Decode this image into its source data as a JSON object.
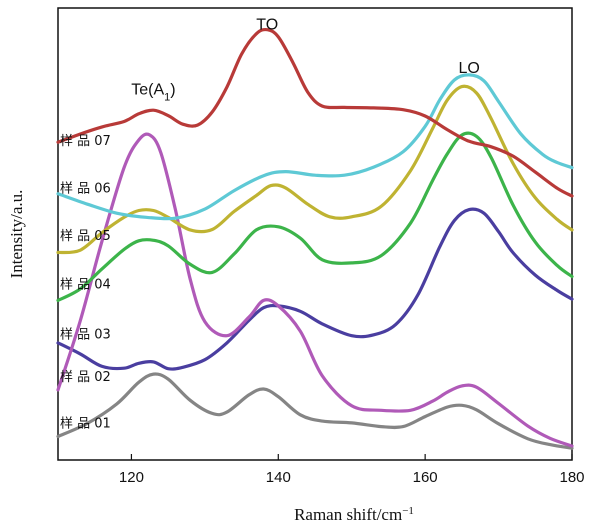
{
  "chart_data": {
    "type": "line",
    "xlabel": "Raman shift/cm",
    "xlabel_sup": "−1",
    "ylabel": "Intensity/a.u.",
    "xlim": [
      110,
      180
    ],
    "ylim": [
      0,
      100
    ],
    "xticks": [
      120,
      140,
      160,
      180
    ],
    "grid": false,
    "annotations": [
      {
        "text": "Te(A",
        "sub": "1",
        "suffix": ")",
        "x": 123,
        "y": 82.2
      },
      {
        "text": "TO",
        "x": 138.5,
        "y": 96.6
      },
      {
        "text": "LO",
        "x": 166,
        "y": 86.9
      }
    ],
    "series": [
      {
        "name": "样 品 01",
        "color": "#858585",
        "label_y": 8.3,
        "points": [
          [
            110,
            5.2
          ],
          [
            114,
            8.1
          ],
          [
            118,
            12.4
          ],
          [
            121,
            17.2
          ],
          [
            123,
            19.0
          ],
          [
            125,
            17.9
          ],
          [
            128,
            13.2
          ],
          [
            131,
            10.3
          ],
          [
            133,
            10.6
          ],
          [
            136,
            14.4
          ],
          [
            138,
            15.7
          ],
          [
            140,
            14.0
          ],
          [
            143,
            10.0
          ],
          [
            146,
            8.6
          ],
          [
            150,
            8.2
          ],
          [
            154,
            7.4
          ],
          [
            157,
            7.4
          ],
          [
            160,
            9.6
          ],
          [
            163,
            11.7
          ],
          [
            165,
            12.1
          ],
          [
            167,
            11.1
          ],
          [
            170,
            8.0
          ],
          [
            174,
            4.7
          ],
          [
            177,
            3.4
          ],
          [
            180,
            2.6
          ]
        ]
      },
      {
        "name": "样 品 02",
        "color": "#4a3ea0",
        "label_y": 18.6,
        "points": [
          [
            110,
            25.9
          ],
          [
            113,
            23.5
          ],
          [
            116,
            20.7
          ],
          [
            119,
            20.3
          ],
          [
            121,
            21.4
          ],
          [
            123,
            21.7
          ],
          [
            125,
            20.2
          ],
          [
            127,
            20.5
          ],
          [
            130,
            22.2
          ],
          [
            133,
            25.9
          ],
          [
            136,
            30.9
          ],
          [
            138,
            33.7
          ],
          [
            140,
            34.1
          ],
          [
            143,
            32.9
          ],
          [
            146,
            30.1
          ],
          [
            150,
            27.5
          ],
          [
            153,
            27.7
          ],
          [
            156,
            30.0
          ],
          [
            159,
            36.5
          ],
          [
            162,
            47.2
          ],
          [
            164,
            53.0
          ],
          [
            166,
            55.4
          ],
          [
            168,
            54.6
          ],
          [
            170,
            50.5
          ],
          [
            172,
            45.8
          ],
          [
            175,
            40.9
          ],
          [
            178,
            37.5
          ],
          [
            180,
            35.6
          ]
        ]
      },
      {
        "name": "样 品 03",
        "color": "#b05ab8",
        "label_y": 28.0,
        "points": [
          [
            110,
            15.5
          ],
          [
            113,
            30.6
          ],
          [
            116,
            48.5
          ],
          [
            119,
            64.7
          ],
          [
            121,
            70.8
          ],
          [
            122.5,
            71.9
          ],
          [
            124,
            68.0
          ],
          [
            126,
            55.3
          ],
          [
            128,
            40.0
          ],
          [
            130,
            30.6
          ],
          [
            133,
            27.5
          ],
          [
            136,
            31.6
          ],
          [
            138,
            35.3
          ],
          [
            140,
            34.1
          ],
          [
            143,
            28.5
          ],
          [
            146,
            18.6
          ],
          [
            150,
            12.0
          ],
          [
            154,
            11.0
          ],
          [
            158,
            11.0
          ],
          [
            161,
            13.0
          ],
          [
            163,
            15.0
          ],
          [
            165,
            16.4
          ],
          [
            167,
            16.1
          ],
          [
            170,
            12.5
          ],
          [
            174,
            7.5
          ],
          [
            177,
            4.8
          ],
          [
            180,
            3.1
          ]
        ]
      },
      {
        "name": "样 品 04",
        "color": "#3cb44a",
        "label_y": 39.1,
        "points": [
          [
            110,
            35.3
          ],
          [
            113,
            37.8
          ],
          [
            116,
            42.3
          ],
          [
            119,
            46.6
          ],
          [
            121,
            48.5
          ],
          [
            123,
            48.6
          ],
          [
            125,
            47.4
          ],
          [
            128,
            43.3
          ],
          [
            131,
            41.5
          ],
          [
            134,
            45.6
          ],
          [
            137,
            50.9
          ],
          [
            140,
            51.6
          ],
          [
            143,
            49.1
          ],
          [
            146,
            44.3
          ],
          [
            150,
            43.6
          ],
          [
            154,
            45.2
          ],
          [
            158,
            52.4
          ],
          [
            161,
            61.8
          ],
          [
            163,
            67.7
          ],
          [
            165,
            71.9
          ],
          [
            167,
            71.6
          ],
          [
            169,
            66.9
          ],
          [
            172,
            56.3
          ],
          [
            175,
            48.2
          ],
          [
            178,
            43.0
          ],
          [
            180,
            40.6
          ]
        ]
      },
      {
        "name": "样 品 05",
        "color": "#bfb332",
        "label_y": 49.8,
        "points": [
          [
            110,
            45.9
          ],
          [
            113,
            46.4
          ],
          [
            116,
            50.3
          ],
          [
            119,
            53.7
          ],
          [
            121,
            55.2
          ],
          [
            123,
            55.2
          ],
          [
            125,
            53.7
          ],
          [
            128,
            50.9
          ],
          [
            131,
            51.0
          ],
          [
            134,
            55.0
          ],
          [
            137,
            58.5
          ],
          [
            139,
            60.7
          ],
          [
            141,
            60.2
          ],
          [
            144,
            56.6
          ],
          [
            147,
            53.8
          ],
          [
            150,
            53.8
          ],
          [
            154,
            56.1
          ],
          [
            158,
            64.0
          ],
          [
            161,
            73.3
          ],
          [
            163,
            79.6
          ],
          [
            165,
            82.6
          ],
          [
            167,
            81.2
          ],
          [
            169,
            75.5
          ],
          [
            172,
            65.5
          ],
          [
            175,
            58.0
          ],
          [
            178,
            53.2
          ],
          [
            180,
            50.9
          ]
        ]
      },
      {
        "name": "样 品 06",
        "color": "#5ec9d5",
        "label_y": 60.3,
        "points": [
          [
            110,
            58.9
          ],
          [
            114,
            56.6
          ],
          [
            118,
            54.6
          ],
          [
            122,
            53.7
          ],
          [
            126,
            53.5
          ],
          [
            130,
            55.5
          ],
          [
            134,
            59.6
          ],
          [
            138,
            62.9
          ],
          [
            141,
            63.8
          ],
          [
            145,
            63.0
          ],
          [
            149,
            63.0
          ],
          [
            153,
            64.8
          ],
          [
            157,
            68.2
          ],
          [
            160,
            73.8
          ],
          [
            162,
            79.7
          ],
          [
            164,
            84.1
          ],
          [
            166,
            85.2
          ],
          [
            168,
            83.9
          ],
          [
            170,
            79.3
          ],
          [
            173,
            72.2
          ],
          [
            176,
            67.6
          ],
          [
            178,
            65.8
          ],
          [
            180,
            64.7
          ]
        ]
      },
      {
        "name": "样 品 07",
        "color": "#b83a38",
        "label_y": 70.8,
        "points": [
          [
            110,
            70.3
          ],
          [
            113,
            72.1
          ],
          [
            116,
            73.7
          ],
          [
            119,
            74.9
          ],
          [
            121,
            76.6
          ],
          [
            123,
            77.4
          ],
          [
            125,
            76.2
          ],
          [
            127,
            74.3
          ],
          [
            129,
            74.1
          ],
          [
            131,
            77.0
          ],
          [
            133,
            82.5
          ],
          [
            135,
            89.8
          ],
          [
            137,
            94.3
          ],
          [
            138.5,
            95.2
          ],
          [
            140,
            93.6
          ],
          [
            142,
            87.9
          ],
          [
            144,
            81.4
          ],
          [
            146,
            78.3
          ],
          [
            149,
            78.0
          ],
          [
            153,
            77.9
          ],
          [
            157,
            77.5
          ],
          [
            160,
            76.1
          ],
          [
            163,
            73.1
          ],
          [
            166,
            70.5
          ],
          [
            169,
            69.3
          ],
          [
            172,
            67.2
          ],
          [
            175,
            63.7
          ],
          [
            178,
            60.1
          ],
          [
            180,
            58.4
          ]
        ]
      }
    ]
  }
}
